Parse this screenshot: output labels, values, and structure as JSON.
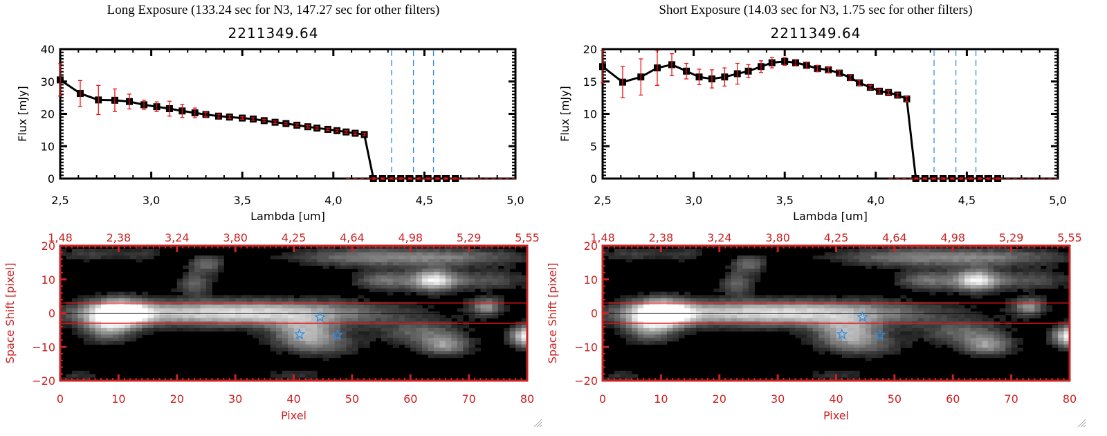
{
  "panels": [
    {
      "title": "Long Exposure (133.24 sec for N3, 147.27 sec for other filters)",
      "object_id": "2211349.64",
      "chart_data": [
        {
          "type": "line",
          "title": "2211349.64",
          "xlabel": "Lambda [um]",
          "ylabel": "Flux [mJy]",
          "xlim": [
            2.5,
            5.0
          ],
          "ylim": [
            0,
            40
          ],
          "xticks": [
            "2.5",
            "3.0",
            "3.5",
            "4.0",
            "4.5",
            "5.0"
          ],
          "xtick_values": [
            2.5,
            3.0,
            3.5,
            4.0,
            4.5,
            5.0
          ],
          "yticks": [
            "0",
            "10",
            "20",
            "30",
            "40"
          ],
          "ytick_values": [
            0,
            10,
            20,
            30,
            40
          ],
          "vlines_dashed_blue": [
            4.32,
            4.44,
            4.55
          ],
          "zero_line_dashed_red": 0,
          "series": [
            {
              "name": "flux",
              "x": [
                2.5,
                2.61,
                2.71,
                2.8,
                2.88,
                2.96,
                3.03,
                3.1,
                3.17,
                3.24,
                3.3,
                3.37,
                3.43,
                3.5,
                3.56,
                3.62,
                3.68,
                3.74,
                3.8,
                3.86,
                3.91,
                3.97,
                4.02,
                4.07,
                4.12,
                4.17,
                4.22,
                4.27,
                4.32,
                4.37,
                4.42,
                4.47,
                4.52,
                4.57,
                4.62,
                4.67
              ],
              "y": [
                30.5,
                26.3,
                24.3,
                24.2,
                23.8,
                22.8,
                22.2,
                21.6,
                20.9,
                20.3,
                19.8,
                19.3,
                19.0,
                18.7,
                18.4,
                17.9,
                17.4,
                17.0,
                16.5,
                16.0,
                15.6,
                15.2,
                14.8,
                14.4,
                14.0,
                13.6,
                0,
                0,
                0,
                0,
                0,
                0,
                0,
                0,
                0,
                0
              ],
              "err": [
                5.0,
                4.0,
                4.5,
                3.5,
                2.3,
                1.4,
                1.5,
                2.3,
                2.0,
                1.5,
                0.7,
                0.6,
                0.5,
                0.4,
                0.4,
                0.4,
                0.4,
                0.4,
                0.4,
                0.4,
                0.4,
                0.4,
                0.4,
                0.4,
                0.4,
                0.4,
                0.2,
                0.2,
                0.2,
                0.2,
                0.2,
                0.2,
                0.2,
                0.2,
                0.2,
                0.2
              ]
            }
          ]
        },
        {
          "type": "heatmap",
          "xlabel": "Pixel",
          "ylabel": "Space Shift [pixel]",
          "xlim": [
            0,
            80
          ],
          "ylim": [
            -20,
            20
          ],
          "xticks": [
            "0",
            "10",
            "20",
            "30",
            "40",
            "50",
            "60",
            "70",
            "80"
          ],
          "xtick_values": [
            0,
            10,
            20,
            30,
            40,
            50,
            60,
            70,
            80
          ],
          "yticks": [
            "-20",
            "-10",
            "0",
            "10",
            "20"
          ],
          "ytick_values": [
            -20,
            -10,
            0,
            10,
            20
          ],
          "top_axis_label_values": [
            "1.48",
            "2.38",
            "3.24",
            "3.80",
            "4.25",
            "4.64",
            "4.98",
            "5.29",
            "5.55"
          ],
          "aperture_lines": [
            3,
            -3
          ],
          "center_line": 0,
          "star_markers": [
            {
              "x": 44.5,
              "y": -1.2
            },
            {
              "x": 41,
              "y": -6.3
            },
            {
              "x": 47.5,
              "y": -6.5
            }
          ]
        }
      ]
    },
    {
      "title": "Short Exposure (14.03 sec for N3, 1.75 sec for other filters)",
      "object_id": "2211349.64",
      "chart_data": [
        {
          "type": "line",
          "title": "2211349.64",
          "xlabel": "Lambda [um]",
          "ylabel": "Flux [mJy]",
          "xlim": [
            2.5,
            5.0
          ],
          "ylim": [
            0,
            20
          ],
          "xticks": [
            "2.5",
            "3.0",
            "3.5",
            "4.0",
            "4.5",
            "5.0"
          ],
          "xtick_values": [
            2.5,
            3.0,
            3.5,
            4.0,
            4.5,
            5.0
          ],
          "yticks": [
            "0",
            "5",
            "10",
            "15",
            "20"
          ],
          "ytick_values": [
            0,
            5,
            10,
            15,
            20
          ],
          "vlines_dashed_blue": [
            4.32,
            4.44,
            4.55
          ],
          "zero_line_dashed_red": 0,
          "series": [
            {
              "name": "flux",
              "x": [
                2.5,
                2.61,
                2.71,
                2.8,
                2.88,
                2.96,
                3.03,
                3.1,
                3.17,
                3.24,
                3.3,
                3.37,
                3.43,
                3.5,
                3.56,
                3.62,
                3.68,
                3.74,
                3.8,
                3.86,
                3.91,
                3.97,
                4.02,
                4.07,
                4.12,
                4.17,
                4.22,
                4.27,
                4.32,
                4.37,
                4.42,
                4.47,
                4.52,
                4.57,
                4.62,
                4.67
              ],
              "y": [
                17.3,
                14.9,
                15.7,
                17.1,
                17.6,
                16.6,
                15.7,
                15.4,
                15.7,
                16.2,
                16.6,
                17.3,
                17.9,
                18.1,
                17.9,
                17.5,
                17.0,
                16.8,
                16.3,
                15.6,
                14.8,
                14.1,
                13.5,
                13.3,
                12.9,
                12.3,
                0,
                0,
                0,
                0,
                0,
                0,
                0,
                0,
                0,
                0
              ],
              "err": [
                2.5,
                2.4,
                2.8,
                2.7,
                1.7,
                1.2,
                1.2,
                1.4,
                1.4,
                1.6,
                1.0,
                0.9,
                0.8,
                0.6,
                0.5,
                0.5,
                0.5,
                0.4,
                0.4,
                0.4,
                0.4,
                0.3,
                0.3,
                0.3,
                0.3,
                0.4,
                0.1,
                0.1,
                0.1,
                0.1,
                0.1,
                0.1,
                0.1,
                0.1,
                0.1,
                0.1
              ]
            }
          ]
        },
        {
          "type": "heatmap",
          "xlabel": "Pixel",
          "ylabel": "Space Shift [pixel]",
          "xlim": [
            0,
            80
          ],
          "ylim": [
            -20,
            20
          ],
          "xticks": [
            "0",
            "10",
            "20",
            "30",
            "40",
            "50",
            "60",
            "70",
            "80"
          ],
          "xtick_values": [
            0,
            10,
            20,
            30,
            40,
            50,
            60,
            70,
            80
          ],
          "yticks": [
            "-20",
            "-10",
            "0",
            "10",
            "20"
          ],
          "ytick_values": [
            -20,
            -10,
            0,
            10,
            20
          ],
          "top_axis_label_values": [
            "1.48",
            "2.38",
            "3.24",
            "3.80",
            "4.25",
            "4.64",
            "4.98",
            "5.29",
            "5.55"
          ],
          "aperture_lines": [
            3,
            -3
          ],
          "center_line": 0,
          "star_markers": [
            {
              "x": 44.5,
              "y": -1.2
            },
            {
              "x": 41,
              "y": -6.3
            },
            {
              "x": 47.5,
              "y": -6.5
            }
          ]
        }
      ]
    }
  ],
  "colors": {
    "axis_black": "#000000",
    "image_axis_red": "#cc2222",
    "error_bar_red": "#ee1111",
    "filter_line_blue": "#2a8ee6",
    "star_blue": "#2a8ee6",
    "aperture_red": "#ee1111"
  }
}
